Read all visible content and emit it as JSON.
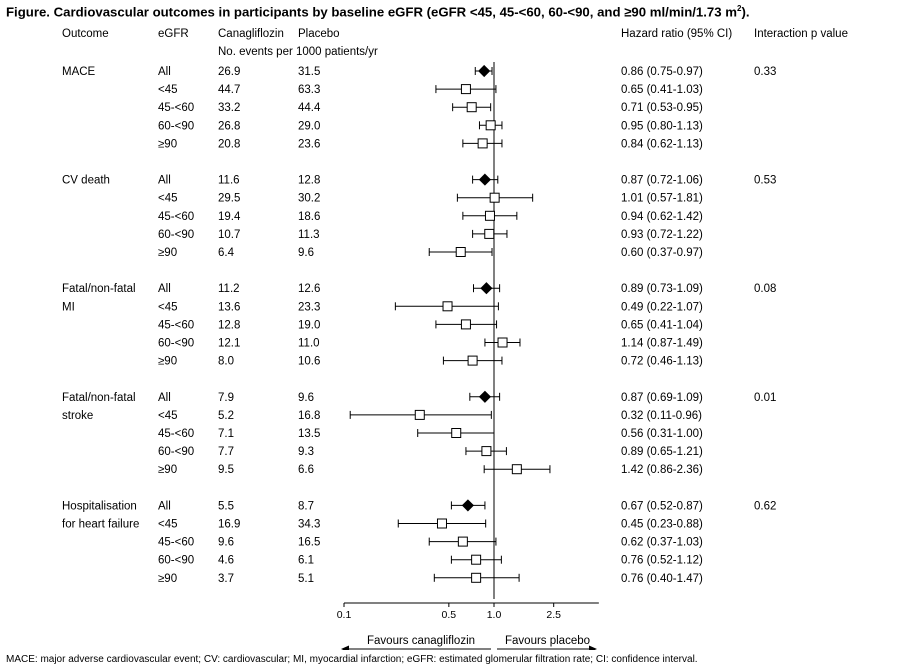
{
  "title": {
    "text": "Figure. Cardiovascular outcomes in participants by baseline eGFR (eGFR <45, 45-<60, 60-<90, and ≥90 ml/min/1.73 m",
    "sup": "2",
    "end": ")."
  },
  "headers": {
    "outcome": "Outcome",
    "egfr": "eGFR",
    "cana": "Canagliflozin",
    "placebo": "Placebo",
    "subheader": "No. events per 1000 patients/yr",
    "hr": "Hazard ratio (95% CI)",
    "interaction": "Interaction p value"
  },
  "footnote": "MACE: major adverse cardiovascular event; CV: cardiovascular; MI, myocardial infarction; eGFR: estimated glomerular filtration rate; CI: confidence interval.",
  "chart_data": {
    "type": "forest",
    "x_scale": "log",
    "xlim": [
      0.1,
      5
    ],
    "reference_line": 1.0,
    "x_ticks": [
      0.1,
      0.5,
      1.0,
      2.5
    ],
    "x_tick_labels": [
      "0.1",
      "0.5",
      "1.0",
      "2.5"
    ],
    "arrow_left_label": "Favours canagliflozin",
    "arrow_right_label": "Favours placebo",
    "groups": [
      {
        "outcome": [
          "MACE"
        ],
        "p_interaction": "0.33",
        "rows": [
          {
            "egfr": "All",
            "cana": "26.9",
            "placebo": "31.5",
            "hr": 0.86,
            "lo": 0.75,
            "hi": 0.97,
            "label": "0.86 (0.75-0.97)",
            "overall": true
          },
          {
            "egfr": "<45",
            "cana": "44.7",
            "placebo": "63.3",
            "hr": 0.65,
            "lo": 0.41,
            "hi": 1.03,
            "label": "0.65 (0.41-1.03)",
            "overall": false
          },
          {
            "egfr": "45-<60",
            "cana": "33.2",
            "placebo": "44.4",
            "hr": 0.71,
            "lo": 0.53,
            "hi": 0.95,
            "label": "0.71 (0.53-0.95)",
            "overall": false
          },
          {
            "egfr": "60-<90",
            "cana": "26.8",
            "placebo": "29.0",
            "hr": 0.95,
            "lo": 0.8,
            "hi": 1.13,
            "label": "0.95 (0.80-1.13)",
            "overall": false
          },
          {
            "egfr": "≥90",
            "cana": "20.8",
            "placebo": "23.6",
            "hr": 0.84,
            "lo": 0.62,
            "hi": 1.13,
            "label": "0.84 (0.62-1.13)",
            "overall": false
          }
        ]
      },
      {
        "outcome": [
          "CV death"
        ],
        "p_interaction": "0.53",
        "rows": [
          {
            "egfr": "All",
            "cana": "11.6",
            "placebo": "12.8",
            "hr": 0.87,
            "lo": 0.72,
            "hi": 1.06,
            "label": "0.87 (0.72-1.06)",
            "overall": true
          },
          {
            "egfr": "<45",
            "cana": "29.5",
            "placebo": "30.2",
            "hr": 1.01,
            "lo": 0.57,
            "hi": 1.81,
            "label": "1.01 (0.57-1.81)",
            "overall": false
          },
          {
            "egfr": "45-<60",
            "cana": "19.4",
            "placebo": "18.6",
            "hr": 0.94,
            "lo": 0.62,
            "hi": 1.42,
            "label": "0.94 (0.62-1.42)",
            "overall": false
          },
          {
            "egfr": "60-<90",
            "cana": "10.7",
            "placebo": "11.3",
            "hr": 0.93,
            "lo": 0.72,
            "hi": 1.22,
            "label": "0.93 (0.72-1.22)",
            "overall": false
          },
          {
            "egfr": "≥90",
            "cana": "6.4",
            "placebo": "9.6",
            "hr": 0.6,
            "lo": 0.37,
            "hi": 0.97,
            "label": "0.60 (0.37-0.97)",
            "overall": false
          }
        ]
      },
      {
        "outcome": [
          "Fatal/non-fatal",
          "MI"
        ],
        "p_interaction": "0.08",
        "rows": [
          {
            "egfr": "All",
            "cana": "11.2",
            "placebo": "12.6",
            "hr": 0.89,
            "lo": 0.73,
            "hi": 1.09,
            "label": "0.89 (0.73-1.09)",
            "overall": true
          },
          {
            "egfr": "<45",
            "cana": "13.6",
            "placebo": "23.3",
            "hr": 0.49,
            "lo": 0.22,
            "hi": 1.07,
            "label": "0.49 (0.22-1.07)",
            "overall": false
          },
          {
            "egfr": "45-<60",
            "cana": "12.8",
            "placebo": "19.0",
            "hr": 0.65,
            "lo": 0.41,
            "hi": 1.04,
            "label": "0.65 (0.41-1.04)",
            "overall": false
          },
          {
            "egfr": "60-<90",
            "cana": "12.1",
            "placebo": "11.0",
            "hr": 1.14,
            "lo": 0.87,
            "hi": 1.49,
            "label": "1.14 (0.87-1.49)",
            "overall": false
          },
          {
            "egfr": "≥90",
            "cana": "8.0",
            "placebo": "10.6",
            "hr": 0.72,
            "lo": 0.46,
            "hi": 1.13,
            "label": "0.72 (0.46-1.13)",
            "overall": false
          }
        ]
      },
      {
        "outcome": [
          "Fatal/non-fatal",
          "stroke"
        ],
        "p_interaction": "0.01",
        "rows": [
          {
            "egfr": "All",
            "cana": "7.9",
            "placebo": "9.6",
            "hr": 0.87,
            "lo": 0.69,
            "hi": 1.09,
            "label": "0.87 (0.69-1.09)",
            "overall": true
          },
          {
            "egfr": "<45",
            "cana": "5.2",
            "placebo": "16.8",
            "hr": 0.32,
            "lo": 0.11,
            "hi": 0.96,
            "label": "0.32 (0.11-0.96)",
            "overall": false
          },
          {
            "egfr": "45-<60",
            "cana": "7.1",
            "placebo": "13.5",
            "hr": 0.56,
            "lo": 0.31,
            "hi": 1.0,
            "label": "0.56 (0.31-1.00)",
            "overall": false
          },
          {
            "egfr": "60-<90",
            "cana": "7.7",
            "placebo": "9.3",
            "hr": 0.89,
            "lo": 0.65,
            "hi": 1.21,
            "label": "0.89 (0.65-1.21)",
            "overall": false
          },
          {
            "egfr": "≥90",
            "cana": "9.5",
            "placebo": "6.6",
            "hr": 1.42,
            "lo": 0.86,
            "hi": 2.36,
            "label": "1.42 (0.86-2.36)",
            "overall": false
          }
        ]
      },
      {
        "outcome": [
          "Hospitalisation",
          "for heart failure"
        ],
        "p_interaction": "0.62",
        "rows": [
          {
            "egfr": "All",
            "cana": "5.5",
            "placebo": "8.7",
            "hr": 0.67,
            "lo": 0.52,
            "hi": 0.87,
            "label": "0.67 (0.52-0.87)",
            "overall": true
          },
          {
            "egfr": "<45",
            "cana": "16.9",
            "placebo": "34.3",
            "hr": 0.45,
            "lo": 0.23,
            "hi": 0.88,
            "label": "0.45 (0.23-0.88)",
            "overall": false
          },
          {
            "egfr": "45-<60",
            "cana": "9.6",
            "placebo": "16.5",
            "hr": 0.62,
            "lo": 0.37,
            "hi": 1.03,
            "label": "0.62 (0.37-1.03)",
            "overall": false
          },
          {
            "egfr": "60-<90",
            "cana": "4.6",
            "placebo": "6.1",
            "hr": 0.76,
            "lo": 0.52,
            "hi": 1.12,
            "label": "0.76 (0.52-1.12)",
            "overall": false
          },
          {
            "egfr": "≥90",
            "cana": "3.7",
            "placebo": "5.1",
            "hr": 0.76,
            "lo": 0.4,
            "hi": 1.47,
            "label": "0.76 (0.40-1.47)",
            "overall": false
          }
        ]
      }
    ]
  }
}
